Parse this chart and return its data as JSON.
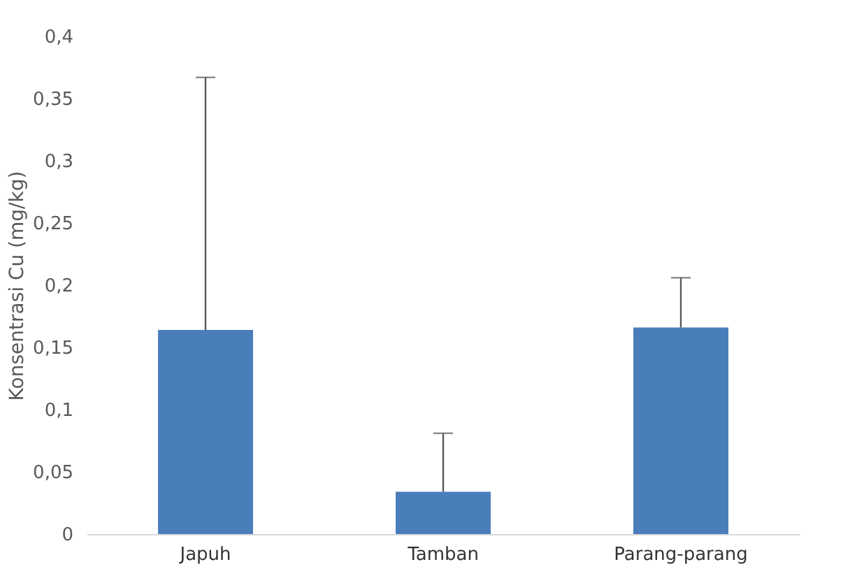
{
  "chart_data": {
    "type": "bar",
    "ylabel": "Konsentrasi Cu (mg/kg)",
    "categories": [
      "Japuh",
      "Tamban",
      "Parang-parang"
    ],
    "values": [
      0.164,
      0.034,
      0.166
    ],
    "color": "#4a7ebb",
    "errors": [
      [
        0.164,
        0.367
      ],
      [
        0.034,
        0.081
      ],
      [
        0.166,
        0.206
      ]
    ],
    "ylim": [
      0,
      0.4
    ],
    "yticks": [
      0,
      {
        "value": 0.05,
        "label": "0,05"
      },
      {
        "value": 0.1,
        "label": "0,1"
      },
      {
        "value": 0.15,
        "label": "0,15"
      },
      {
        "value": 0.2,
        "label": "0,2"
      },
      {
        "value": 0.25,
        "label": "0,25"
      },
      {
        "value": 0.3,
        "label": "0,3"
      },
      {
        "value": 0.35,
        "label": "0,35"
      },
      {
        "value": 0.4,
        "label": "0,4"
      }
    ],
    "grid": false
  }
}
